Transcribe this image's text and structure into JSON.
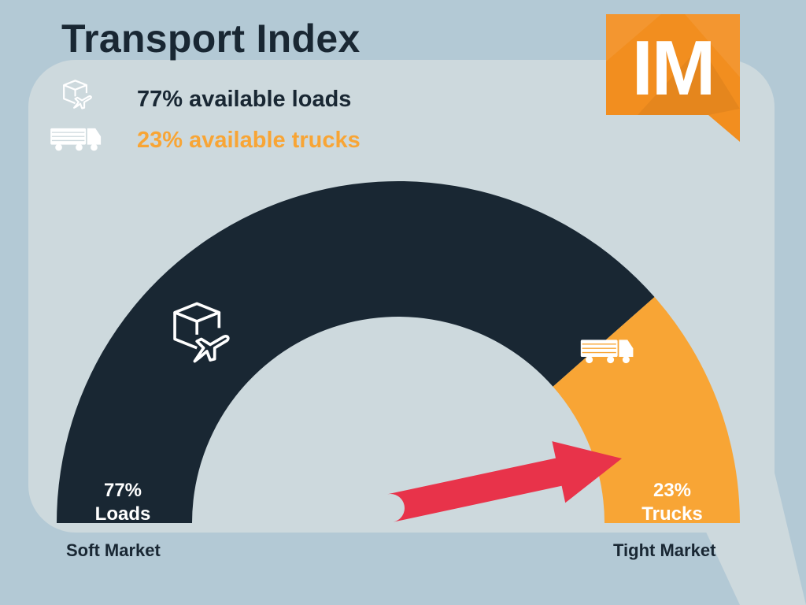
{
  "title": "Transport Index",
  "legend": {
    "loads_text": "77% available loads",
    "trucks_text": "23% available trucks"
  },
  "logo": {
    "text": "IM",
    "color": "#f28e1f"
  },
  "chart_data": {
    "type": "gauge",
    "min": 0,
    "max": 100,
    "segments": [
      {
        "key": "loads",
        "value": 77,
        "value_label": "77%",
        "name_label": "Loads",
        "color": "#192733",
        "icon": "box-plane-icon"
      },
      {
        "key": "trucks",
        "value": 23,
        "value_label": "23%",
        "name_label": "Trucks",
        "color": "#f8a535",
        "icon": "truck-icon"
      }
    ],
    "needle": {
      "value": 77,
      "color": "#e8334a"
    },
    "scale_left_label": "Soft Market",
    "scale_right_label": "Tight Market"
  }
}
